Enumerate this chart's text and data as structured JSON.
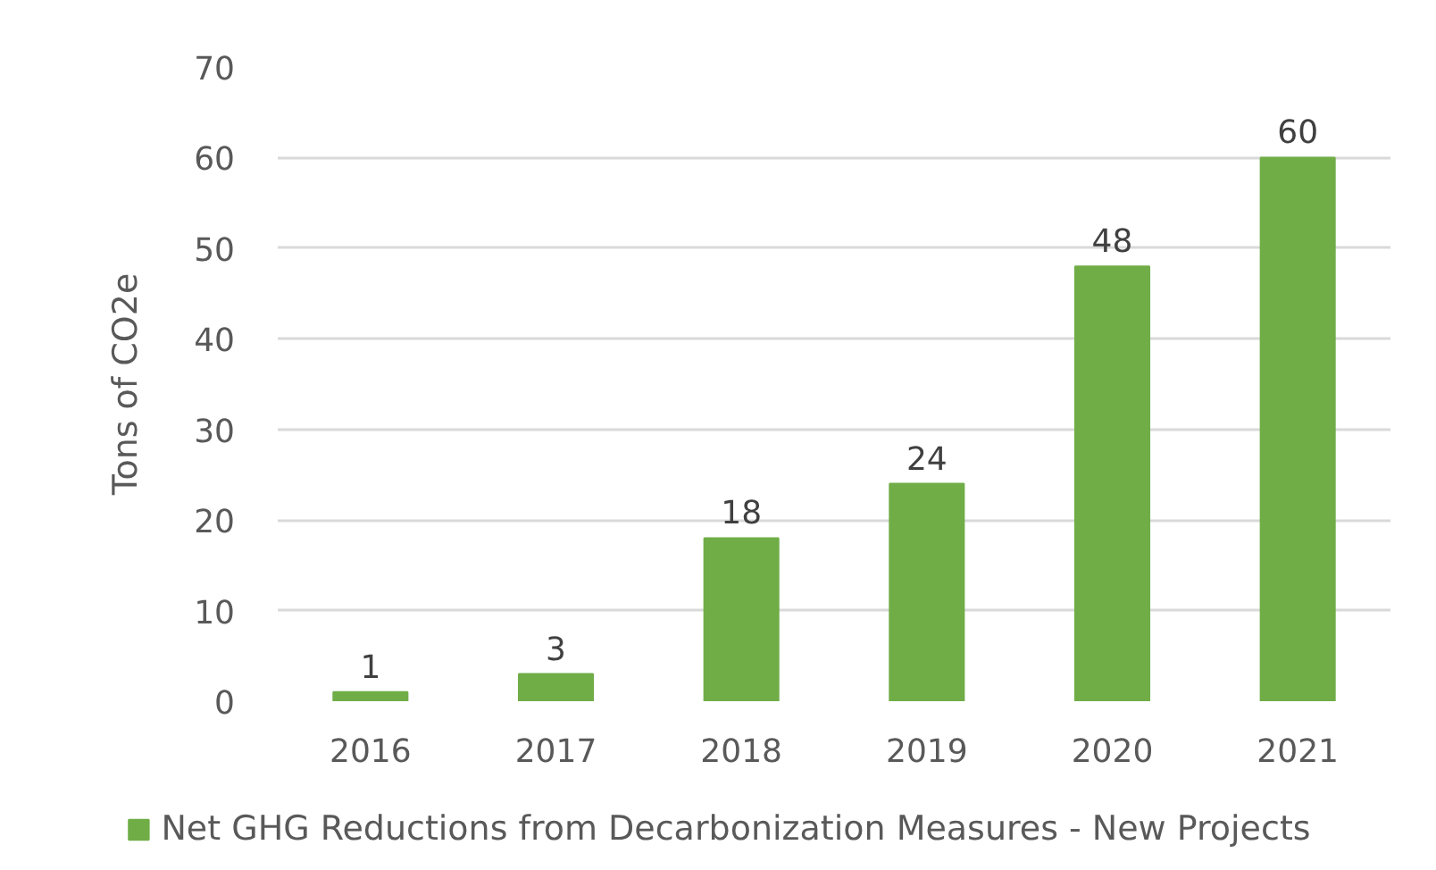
{
  "chart_data": {
    "type": "bar",
    "categories": [
      "2016",
      "2017",
      "2018",
      "2019",
      "2020",
      "2021"
    ],
    "series": [
      {
        "name": "Net GHG Reductions from Decarbonization Measures - New Projects",
        "color": "#70ad47",
        "values": [
          1,
          3,
          18,
          24,
          48,
          60
        ]
      }
    ],
    "ylabel": "Tons of CO2e",
    "ylim": [
      0,
      70
    ],
    "yticks": [
      0,
      10,
      20,
      30,
      40,
      50,
      60,
      70
    ],
    "grid": "y",
    "legend": "bottom",
    "data_labels": true
  }
}
